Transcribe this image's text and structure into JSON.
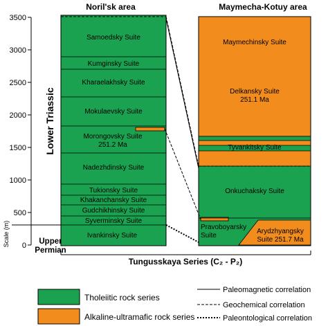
{
  "titles": {
    "left": "Noril'sk area",
    "right": "Maymecha-Kotuy area"
  },
  "axis": {
    "label": "Scale (m)",
    "ticks": [
      "3500",
      "3000",
      "2500",
      "2000",
      "1500",
      "1000",
      "500",
      "0"
    ]
  },
  "periods": {
    "lower_triassic": "Lower Triassic",
    "upper_permian_1": "Upper",
    "upper_permian_2": "Permian"
  },
  "noril_suites": [
    "Samoedsky Suite",
    "Kumginsky Suite",
    "Kharaelakhsky Suite",
    "Mokulaevsky Suite",
    "Morongovsky Suite",
    "251.2 Ma",
    "Nadezhdinsky Suite",
    "Tukionsky Suite",
    "Khakanchansky Suite",
    "Gudchikhinsky Suite",
    "Syverminsky Suite",
    "Ivankinsky Suite"
  ],
  "maymecha_suites": [
    "Maymechinsky Suite",
    "Delkansky Suite",
    "251.1 Ma",
    "Tyvankitsky Suite",
    "Onkuchaksky Suite",
    "Pravoboyarsky",
    "Suite",
    "Arydzhyangsky",
    "Suite 251.7 Ma"
  ],
  "series_label": "Tungusskaya Series (C₂ - P₂)",
  "legend": {
    "tholeiitic": "Tholeiitic rock series",
    "alkaline": "Alkaline-ultramafic rock series",
    "paleomagnetic": "Paleomagnetic correlation",
    "geochemical": "Geochemical correlation",
    "paleontological": "Paleontological correlation"
  },
  "colors": {
    "green": "#1aa251",
    "orange": "#f28c1d",
    "line": "#000000"
  }
}
